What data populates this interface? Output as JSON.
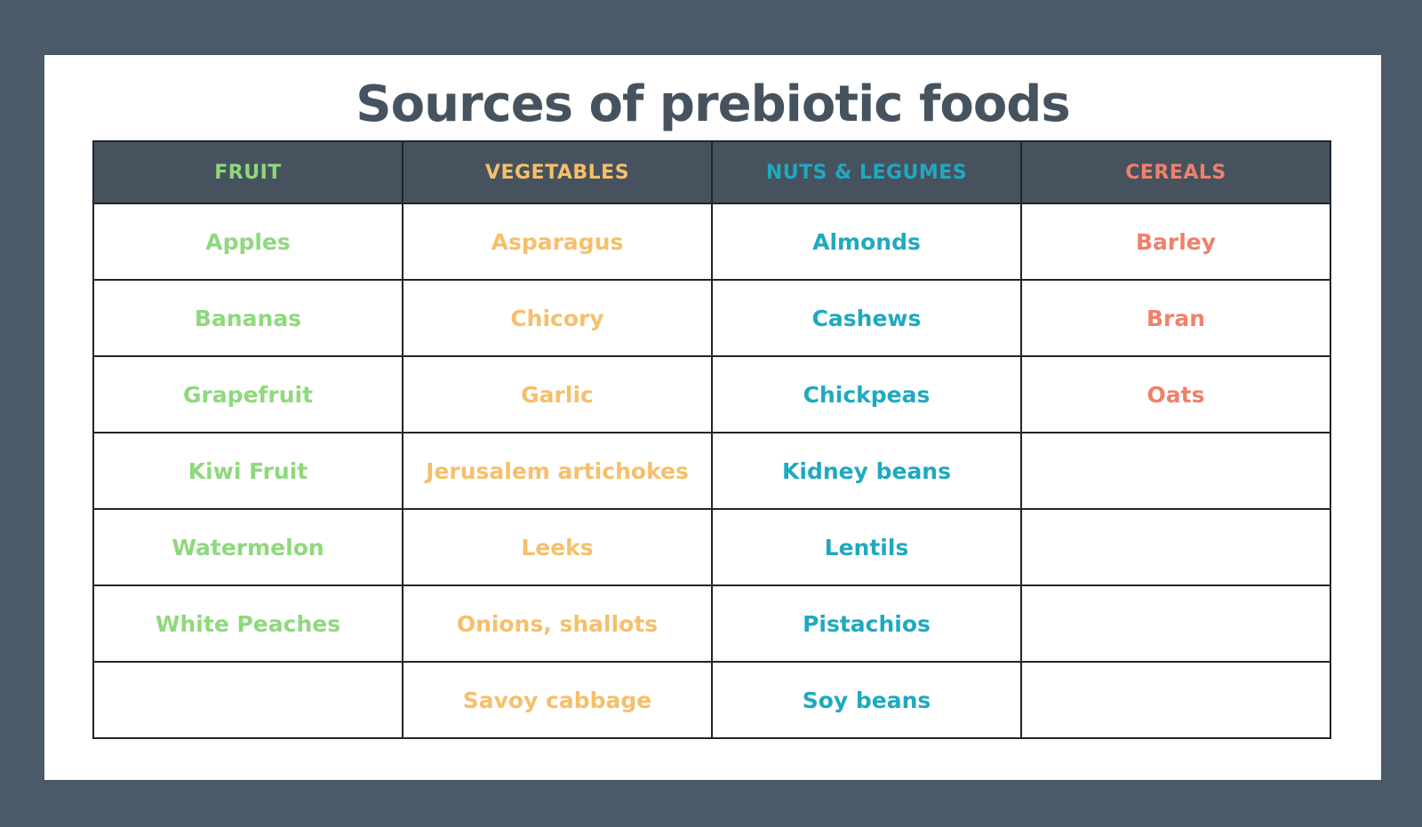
{
  "title": "Sources of prebiotic foods",
  "colors": {
    "background": "#4a5a68",
    "card": "#ffffff",
    "header_bg": "#46535f",
    "title": "#46535f",
    "fruit": "#8fd87d",
    "vegetables": "#f6bf6a",
    "nuts_legumes": "#1fa9c0",
    "cereals": "#f0806b"
  },
  "table": {
    "headers": [
      "FRUIT",
      "VEGETABLES",
      "NUTS & LEGUMES",
      "CEREALS"
    ],
    "rows": [
      [
        "Apples",
        "Asparagus",
        "Almonds",
        "Barley"
      ],
      [
        "Bananas",
        "Chicory",
        "Cashews",
        "Bran"
      ],
      [
        "Grapefruit",
        "Garlic",
        "Chickpeas",
        "Oats"
      ],
      [
        "Kiwi Fruit",
        "Jerusalem artichokes",
        "Kidney beans",
        ""
      ],
      [
        "Watermelon",
        "Leeks",
        "Lentils",
        ""
      ],
      [
        "White Peaches",
        "Onions, shallots",
        "Pistachios",
        ""
      ],
      [
        "",
        "Savoy cabbage",
        "Soy beans",
        ""
      ]
    ]
  }
}
